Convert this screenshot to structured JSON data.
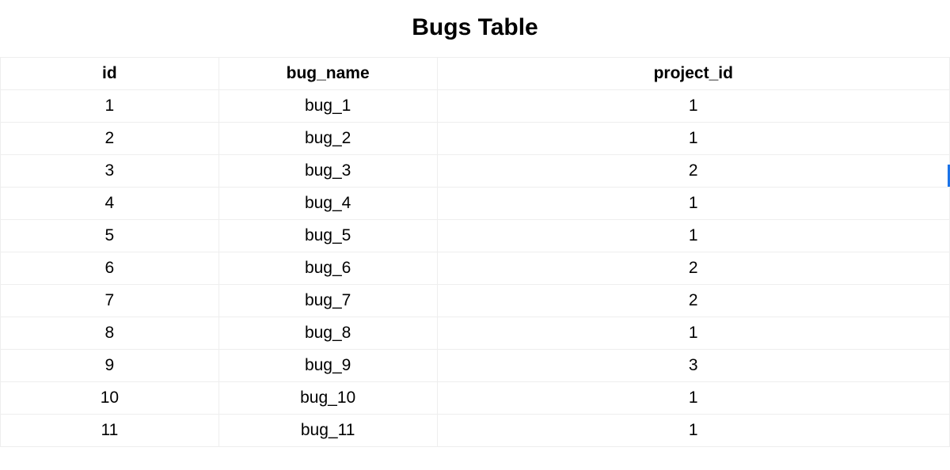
{
  "title": "Bugs Table",
  "table": {
    "columns": [
      "id",
      "bug_name",
      "project_id"
    ],
    "column_widths_percent": [
      23,
      23,
      54
    ],
    "rows": [
      [
        "1",
        "bug_1",
        "1"
      ],
      [
        "2",
        "bug_2",
        "1"
      ],
      [
        "3",
        "bug_3",
        "2"
      ],
      [
        "4",
        "bug_4",
        "1"
      ],
      [
        "5",
        "bug_5",
        "1"
      ],
      [
        "6",
        "bug_6",
        "2"
      ],
      [
        "7",
        "bug_7",
        "2"
      ],
      [
        "8",
        "bug_8",
        "1"
      ],
      [
        "9",
        "bug_9",
        "3"
      ],
      [
        "10",
        "bug_10",
        "1"
      ],
      [
        "11",
        "bug_11",
        "1"
      ]
    ],
    "border_color": "#eeeeee",
    "background_color": "#ffffff",
    "text_color": "#000000",
    "header_font_weight": "bold",
    "cell_font_size": 21,
    "title_font_size": 30
  },
  "cursor_indicator_color": "#1a73e8"
}
